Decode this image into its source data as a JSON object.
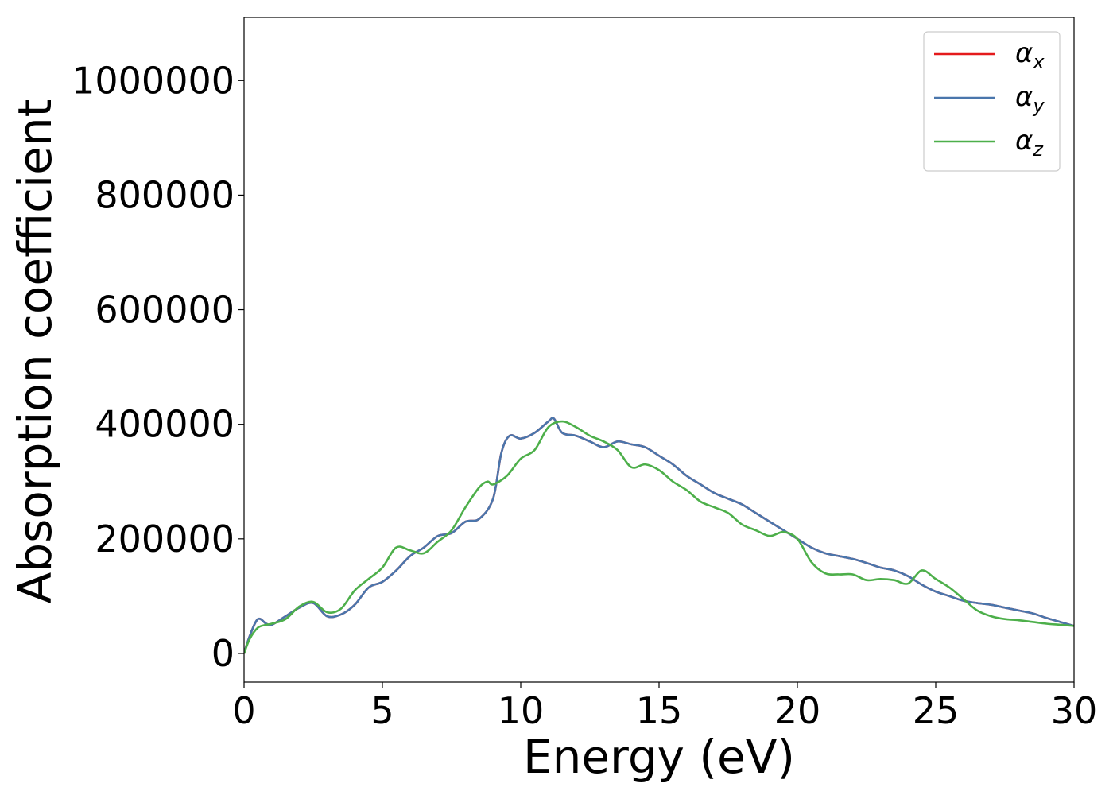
{
  "chart_data": {
    "type": "line",
    "title": "",
    "xlabel": "Energy (eV)",
    "ylabel": "Absorption coefficient",
    "xlim": [
      0,
      30
    ],
    "ylim": [
      -50000,
      1110000
    ],
    "xticks": [
      0,
      5,
      10,
      15,
      20,
      25,
      30
    ],
    "yticks": [
      0,
      200000,
      400000,
      600000,
      800000,
      1000000
    ],
    "xtick_labels": [
      "0",
      "5",
      "10",
      "15",
      "20",
      "25",
      "30"
    ],
    "ytick_labels": [
      "0",
      "200000",
      "400000",
      "600000",
      "800000",
      "1000000"
    ],
    "grid": false,
    "legend_position": "top-right",
    "series": [
      {
        "name": "α_x",
        "legend_base": "α",
        "legend_sub": "x",
        "color": "#e41a1c",
        "x": [
          0,
          0.2,
          0.5,
          0.8,
          1.0,
          1.5,
          2.0,
          2.5,
          3.0,
          3.5,
          4.0,
          4.5,
          5.0,
          5.5,
          6.0,
          6.5,
          7.0,
          7.5,
          8.0,
          8.5,
          9.0,
          9.3,
          9.6,
          10.0,
          10.5,
          11.0,
          11.2,
          11.5,
          12.0,
          12.5,
          13.0,
          13.5,
          14.0,
          14.5,
          15.0,
          15.5,
          16.0,
          16.5,
          17.0,
          17.5,
          18.0,
          18.5,
          19.0,
          19.5,
          20.0,
          20.5,
          21.0,
          21.5,
          22.0,
          22.5,
          23.0,
          23.5,
          24.0,
          24.5,
          25.0,
          25.5,
          26.0,
          26.5,
          27.0,
          27.5,
          28.0,
          28.5,
          29.0,
          29.5,
          30.0
        ],
        "y": [
          0,
          30000,
          60000,
          52000,
          50000,
          65000,
          80000,
          88000,
          65000,
          68000,
          85000,
          115000,
          125000,
          145000,
          170000,
          185000,
          205000,
          210000,
          230000,
          235000,
          270000,
          350000,
          380000,
          375000,
          385000,
          405000,
          410000,
          385000,
          380000,
          370000,
          360000,
          370000,
          365000,
          360000,
          345000,
          330000,
          310000,
          295000,
          280000,
          270000,
          260000,
          245000,
          230000,
          215000,
          200000,
          185000,
          175000,
          170000,
          165000,
          158000,
          150000,
          145000,
          135000,
          120000,
          108000,
          100000,
          92000,
          88000,
          85000,
          80000,
          75000,
          70000,
          62000,
          55000,
          48000
        ]
      },
      {
        "name": "α_y",
        "legend_base": "α",
        "legend_sub": "y",
        "color": "#4a76ac",
        "x": [
          0,
          0.2,
          0.5,
          0.8,
          1.0,
          1.5,
          2.0,
          2.5,
          3.0,
          3.5,
          4.0,
          4.5,
          5.0,
          5.5,
          6.0,
          6.5,
          7.0,
          7.5,
          8.0,
          8.5,
          9.0,
          9.3,
          9.6,
          10.0,
          10.5,
          11.0,
          11.2,
          11.5,
          12.0,
          12.5,
          13.0,
          13.5,
          14.0,
          14.5,
          15.0,
          15.5,
          16.0,
          16.5,
          17.0,
          17.5,
          18.0,
          18.5,
          19.0,
          19.5,
          20.0,
          20.5,
          21.0,
          21.5,
          22.0,
          22.5,
          23.0,
          23.5,
          24.0,
          24.5,
          25.0,
          25.5,
          26.0,
          26.5,
          27.0,
          27.5,
          28.0,
          28.5,
          29.0,
          29.5,
          30.0
        ],
        "y": [
          0,
          30000,
          60000,
          52000,
          50000,
          65000,
          80000,
          88000,
          65000,
          68000,
          85000,
          115000,
          125000,
          145000,
          170000,
          185000,
          205000,
          210000,
          230000,
          235000,
          270000,
          350000,
          380000,
          375000,
          385000,
          405000,
          410000,
          385000,
          380000,
          370000,
          360000,
          370000,
          365000,
          360000,
          345000,
          330000,
          310000,
          295000,
          280000,
          270000,
          260000,
          245000,
          230000,
          215000,
          200000,
          185000,
          175000,
          170000,
          165000,
          158000,
          150000,
          145000,
          135000,
          120000,
          108000,
          100000,
          92000,
          88000,
          85000,
          80000,
          75000,
          70000,
          62000,
          55000,
          48000
        ]
      },
      {
        "name": "α_z",
        "legend_base": "α",
        "legend_sub": "z",
        "color": "#4daf4a",
        "x": [
          0,
          0.2,
          0.5,
          0.8,
          1.0,
          1.5,
          2.0,
          2.5,
          3.0,
          3.5,
          4.0,
          4.5,
          5.0,
          5.5,
          6.0,
          6.5,
          7.0,
          7.5,
          8.0,
          8.5,
          8.8,
          9.0,
          9.5,
          10.0,
          10.5,
          11.0,
          11.5,
          12.0,
          12.5,
          13.0,
          13.5,
          14.0,
          14.5,
          15.0,
          15.5,
          16.0,
          16.5,
          17.0,
          17.5,
          18.0,
          18.5,
          19.0,
          19.5,
          20.0,
          20.5,
          21.0,
          21.5,
          22.0,
          22.5,
          23.0,
          23.5,
          24.0,
          24.5,
          25.0,
          25.5,
          26.0,
          26.5,
          27.0,
          27.5,
          28.0,
          28.5,
          29.0,
          29.5,
          30.0
        ],
        "y": [
          0,
          25000,
          45000,
          50000,
          52000,
          60000,
          82000,
          90000,
          72000,
          78000,
          110000,
          130000,
          150000,
          185000,
          180000,
          175000,
          195000,
          215000,
          255000,
          290000,
          300000,
          295000,
          310000,
          340000,
          355000,
          395000,
          405000,
          395000,
          380000,
          370000,
          355000,
          325000,
          330000,
          320000,
          300000,
          285000,
          265000,
          255000,
          245000,
          225000,
          215000,
          205000,
          212000,
          200000,
          160000,
          140000,
          138000,
          138000,
          128000,
          130000,
          128000,
          122000,
          145000,
          130000,
          115000,
          95000,
          75000,
          65000,
          60000,
          58000,
          55000,
          52000,
          50000,
          48000
        ]
      }
    ]
  }
}
